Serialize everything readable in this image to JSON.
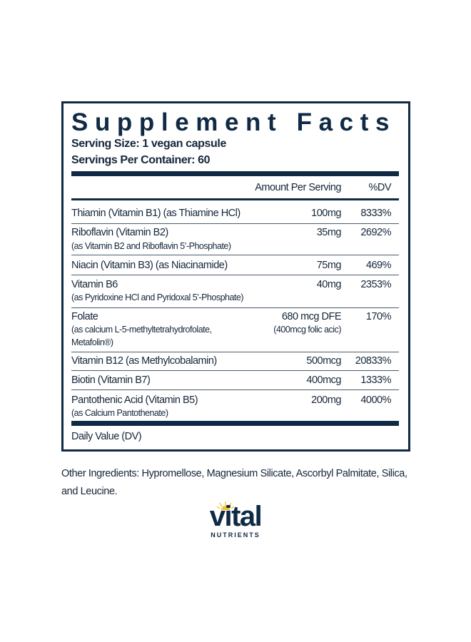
{
  "panel": {
    "title": "Supplement Facts",
    "serving_size": "Serving Size: 1 vegan capsule",
    "servings_per_container": "Servings Per Container: 60",
    "col_amount": "Amount Per Serving",
    "col_dv": "%DV",
    "rows": [
      {
        "name": "Thiamin (Vitamin B1) (as Thiamine HCl)",
        "amount": "100mg",
        "dv": "8333%"
      },
      {
        "name": "Riboflavin (Vitamin B2)",
        "sub": "(as Vitamin B2 and Riboflavin 5’-Phosphate)",
        "amount": "35mg",
        "dv": "2692%"
      },
      {
        "name": "Niacin (Vitamin B3) (as Niacinamide)",
        "amount": "75mg",
        "dv": "469%"
      },
      {
        "name": "Vitamin B6",
        "sub": "(as Pyridoxine HCl and Pyridoxal 5’-Phosphate)",
        "amount": "40mg",
        "dv": "2353%"
      },
      {
        "name": "Folate",
        "sub": "(as calcium L-5-methyltetrahydrofolate,",
        "sub2": "Metafolin®)",
        "amount": "680 mcg  DFE",
        "amount_sub": "(400mcg folic acic)",
        "dv": "170%"
      },
      {
        "name": "Vitamin B12 (as Methylcobalamin)",
        "amount": "500mcg",
        "dv": "20833%"
      },
      {
        "name": "Biotin (Vitamin B7)",
        "amount": "400mcg",
        "dv": "1333%"
      },
      {
        "name": "Pantothenic Acid (Vitamin B5)",
        "sub": "(as Calcium Pantothenate)",
        "amount": "200mg",
        "dv": "4000%"
      }
    ],
    "footnote": "Daily Value (DV)"
  },
  "other_ingredients": "Other Ingredients: Hypromellose, Magnesium Silicate, Ascorbyl Palmitate, Silica, and Leucine.",
  "logo": {
    "word": "vital",
    "sub": "NUTRIENTS",
    "colors": {
      "navy": "#102a45",
      "sun": "#f2c230"
    }
  }
}
